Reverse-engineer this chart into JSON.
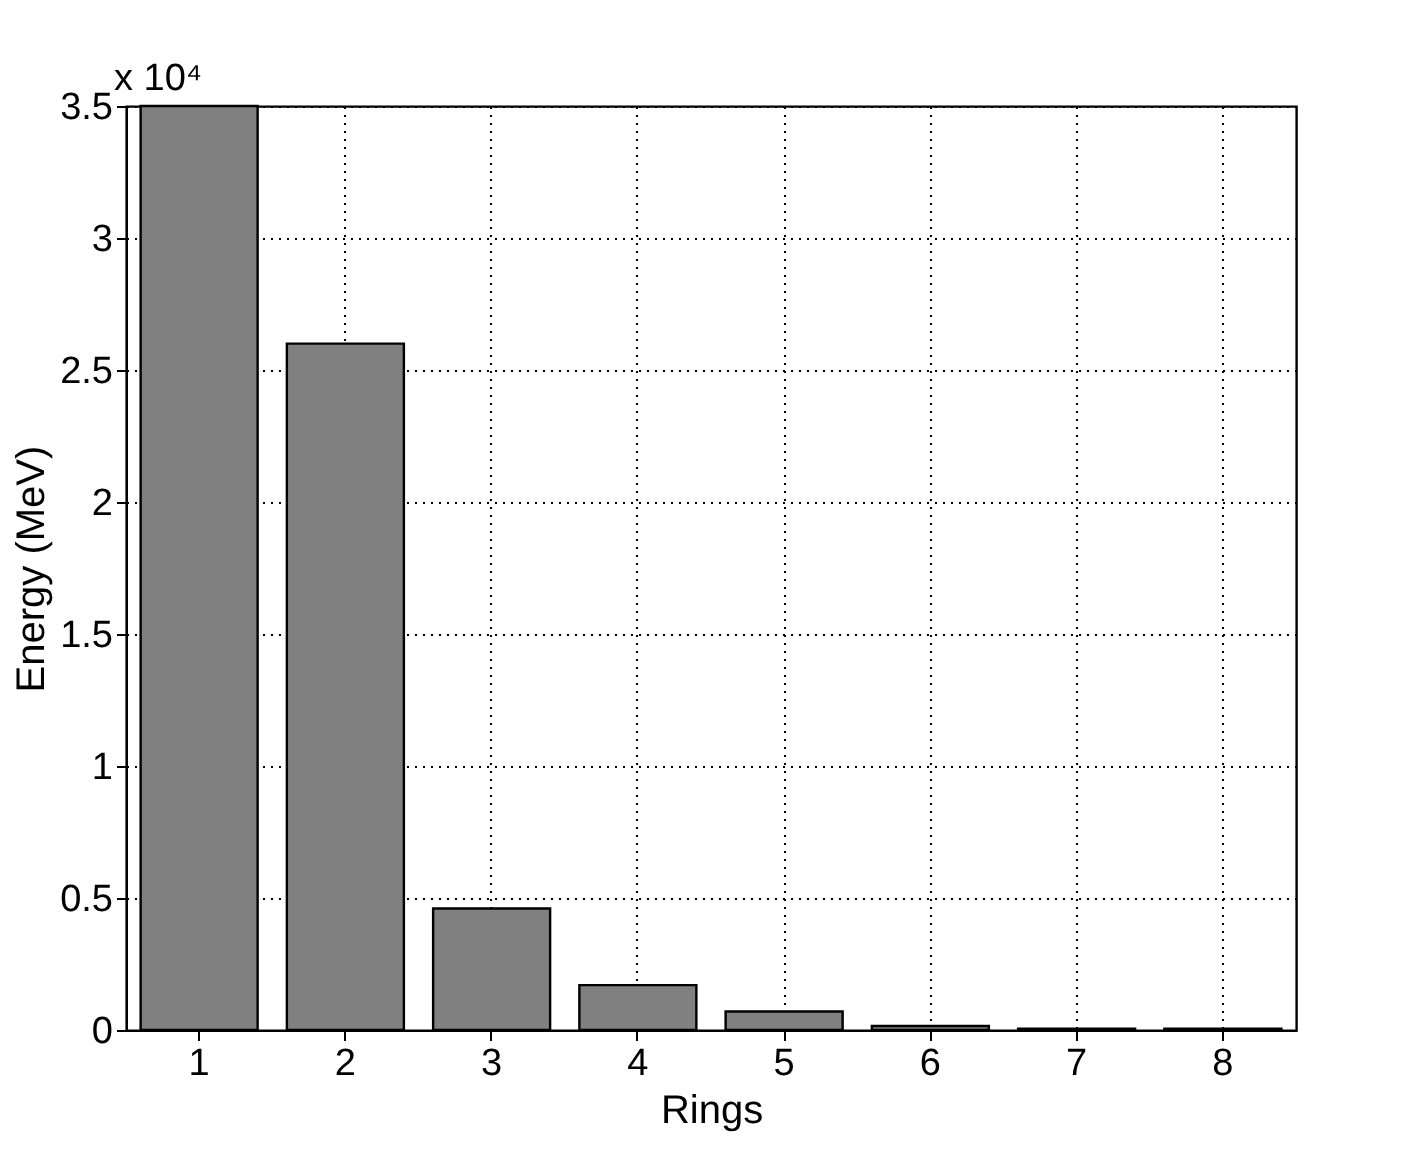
{
  "chart_data": {
    "type": "bar",
    "xlabel": "Rings",
    "ylabel": "Energy (MeV)",
    "categories": [
      "1",
      "2",
      "3",
      "4",
      "5",
      "6",
      "7",
      "8"
    ],
    "values": [
      3.5,
      2.6,
      0.46,
      0.17,
      0.07,
      0.015,
      0.005,
      0.005
    ],
    "color": "#808080",
    "ylim": [
      0,
      3.5
    ],
    "yticks": [
      0,
      0.5,
      1,
      1.5,
      2,
      2.5,
      3,
      3.5
    ],
    "grid": true,
    "annotations": [
      "x 10⁴"
    ]
  }
}
